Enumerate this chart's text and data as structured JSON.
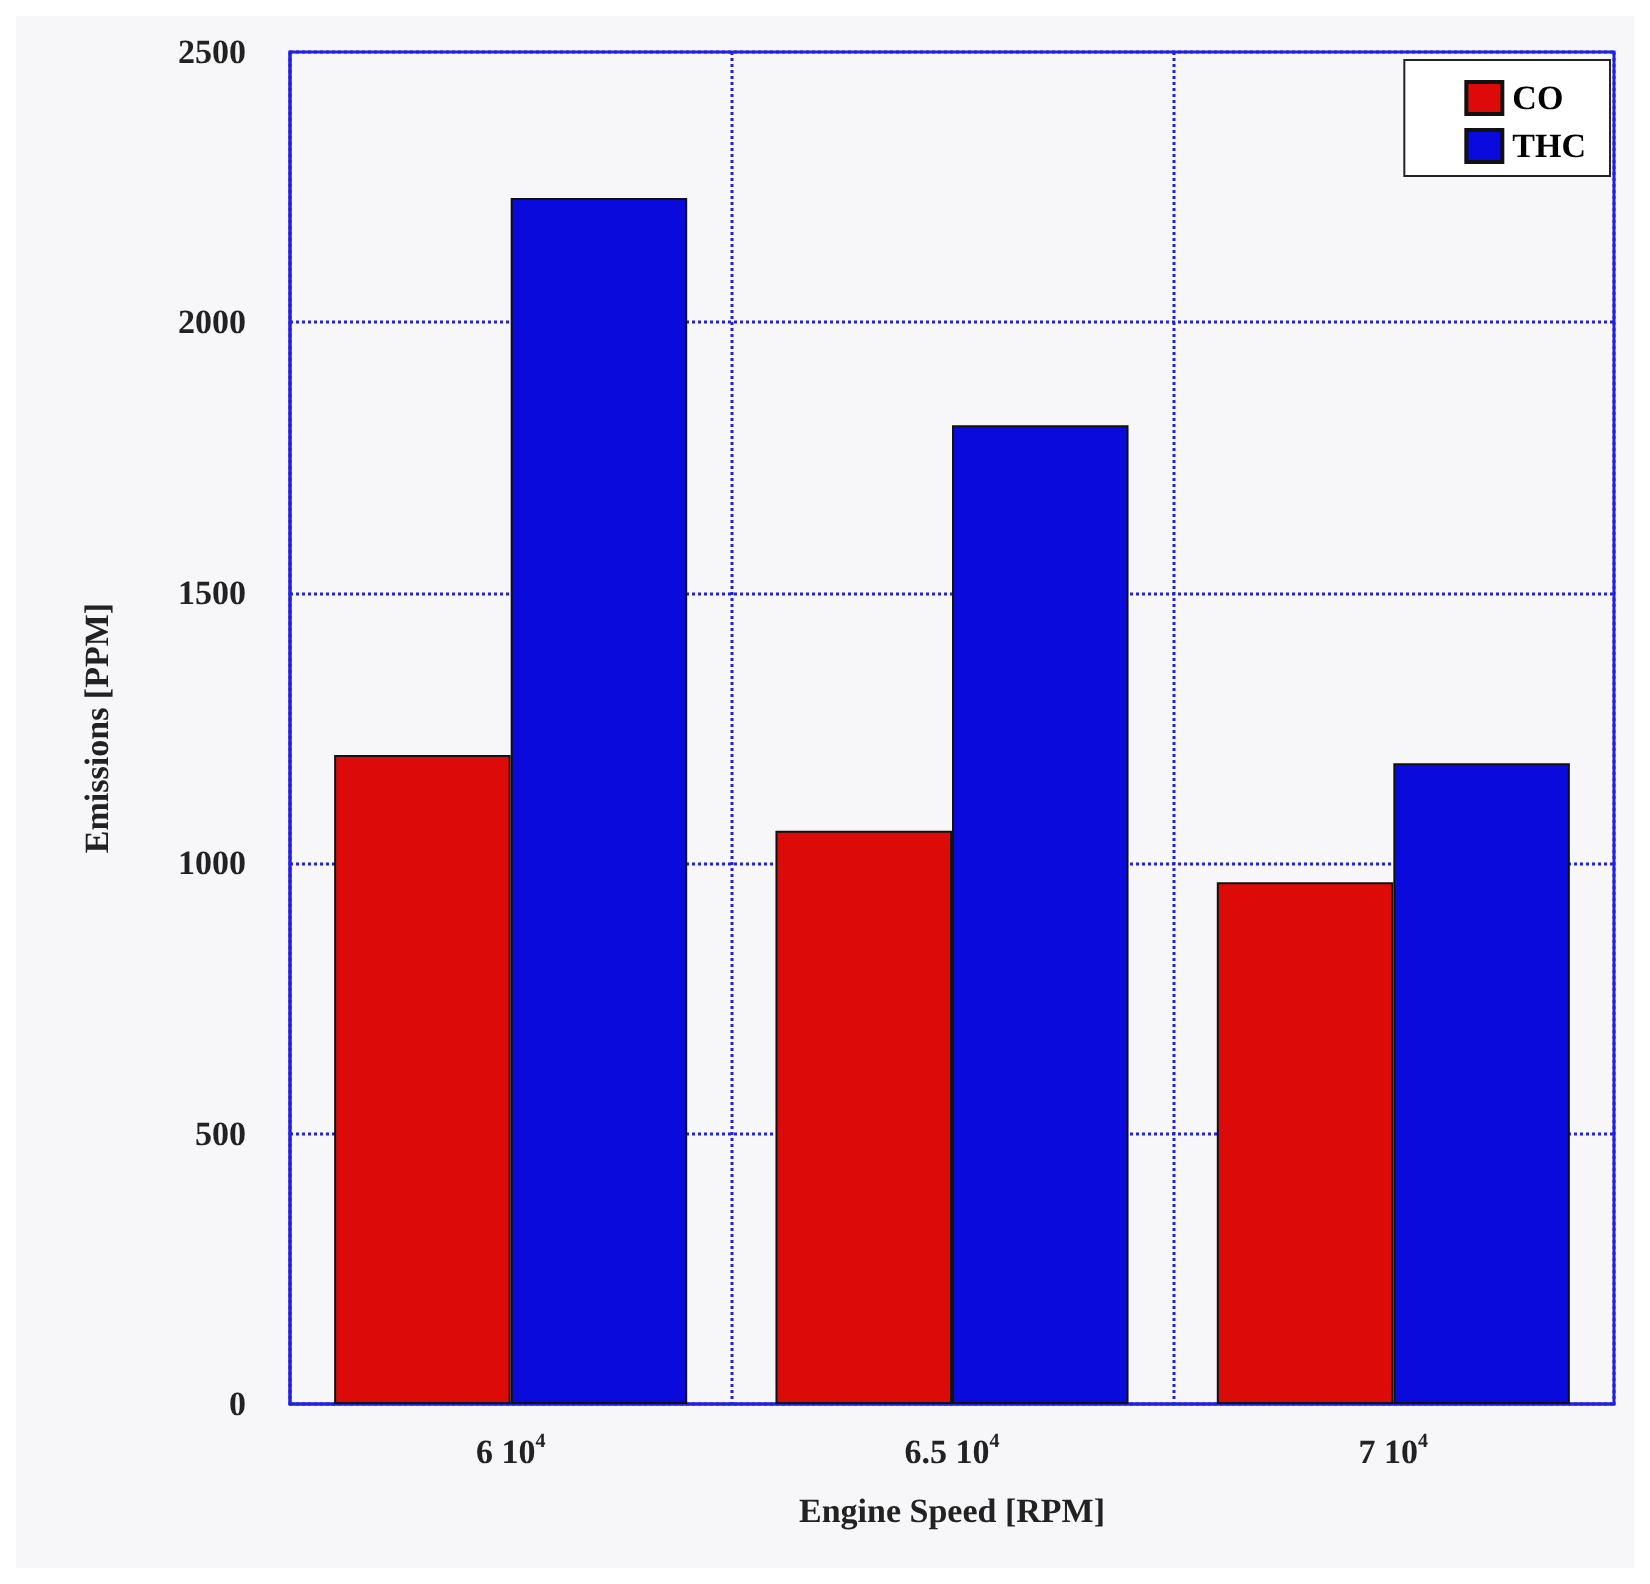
{
  "chart_data": {
    "type": "bar",
    "xlabel": "Engine Speed [RPM]",
    "ylabel": "Emissions [PPM]",
    "categories": [
      "6 10$^{4}$",
      "6.5 10$^{4}$",
      "7 10$^{4}$"
    ],
    "series": [
      {
        "name": "CO",
        "color": "#dd0a0a",
        "values": [
          1200,
          1060,
          965
        ]
      },
      {
        "name": "THC",
        "color": "#0a0add",
        "values": [
          2230,
          1810,
          1185
        ]
      }
    ],
    "ylim": [
      0,
      2500
    ],
    "yticks": [
      0,
      500,
      1000,
      1500,
      2000,
      2500
    ],
    "grid": true,
    "legend": "top right"
  }
}
